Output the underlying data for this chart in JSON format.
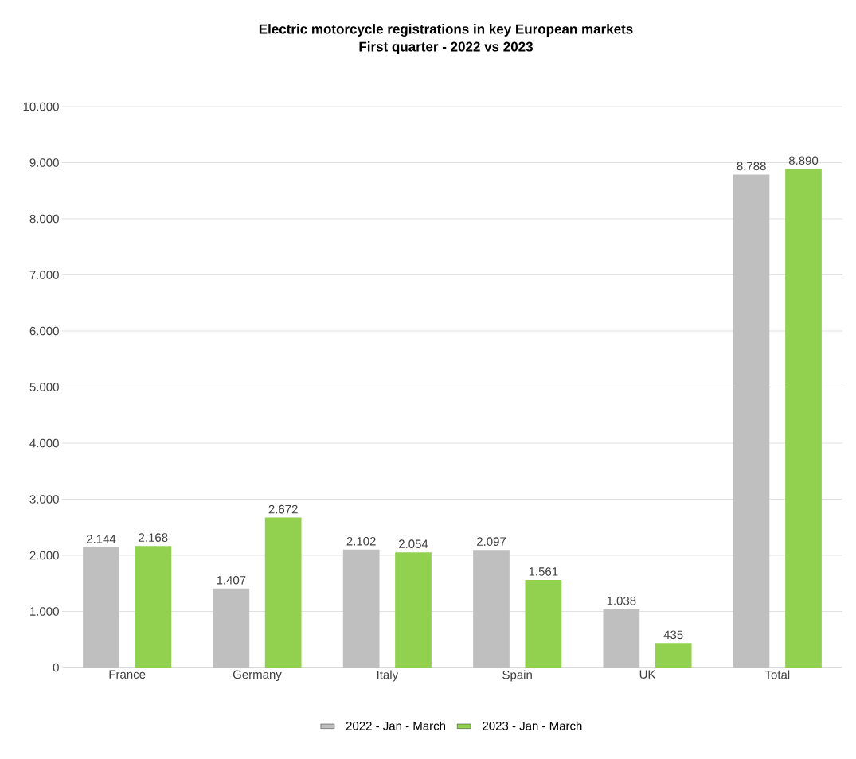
{
  "chart_data": {
    "type": "bar",
    "title": "Electric motorcycle registrations in key European markets",
    "subtitle": "First quarter - 2022 vs 2023",
    "categories": [
      "France",
      "Germany",
      "Italy",
      "Spain",
      "UK",
      "Total"
    ],
    "series": [
      {
        "name": "2022 - Jan - March",
        "color": "#bfbfbf",
        "values": [
          2144,
          1407,
          2102,
          2097,
          1038,
          8788
        ],
        "value_labels": [
          "2.144",
          "1.407",
          "2.102",
          "2.097",
          "1.038",
          "8.788"
        ]
      },
      {
        "name": "2023 - Jan - March",
        "color": "#92d050",
        "values": [
          2168,
          2672,
          2054,
          1561,
          435,
          8890
        ],
        "value_labels": [
          "2.168",
          "2.672",
          "2.054",
          "1.561",
          "435",
          "8.890"
        ]
      }
    ],
    "ylim": [
      0,
      10000
    ],
    "yticks": [
      {
        "value": 0,
        "label": "0"
      },
      {
        "value": 1000,
        "label": "1.000"
      },
      {
        "value": 2000,
        "label": "2.000"
      },
      {
        "value": 3000,
        "label": "3.000"
      },
      {
        "value": 4000,
        "label": "4.000"
      },
      {
        "value": 5000,
        "label": "5.000"
      },
      {
        "value": 6000,
        "label": "6.000"
      },
      {
        "value": 7000,
        "label": "7.000"
      },
      {
        "value": 8000,
        "label": "8.000"
      },
      {
        "value": 9000,
        "label": "9.000"
      },
      {
        "value": 10000,
        "label": "10.000"
      }
    ],
    "grid": "y",
    "legend": "bottom"
  }
}
